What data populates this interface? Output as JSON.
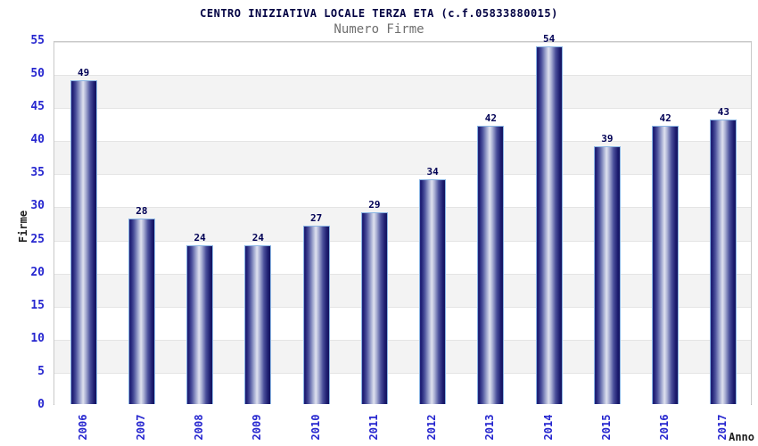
{
  "chart_data": {
    "type": "bar",
    "title": "CENTRO INIZIATIVA LOCALE TERZA ETA (c.f.05833880015)",
    "subtitle": "Numero Firme",
    "xlabel": "Anno",
    "ylabel": "Firme",
    "categories": [
      "2006",
      "2007",
      "2008",
      "2009",
      "2010",
      "2011",
      "2012",
      "2013",
      "2014",
      "2015",
      "2016",
      "2017"
    ],
    "values": [
      49,
      28,
      24,
      24,
      27,
      29,
      34,
      42,
      54,
      39,
      42,
      43
    ],
    "ylim": [
      0,
      55
    ],
    "ytick_step": 5,
    "grid": "horizontal-bands-alternating",
    "legend_position": "none",
    "colors": {
      "bar_edge_dark": "#1b1b6e",
      "bar_mid_light": "#dfe2ef",
      "bar_border": "#8ab5e4",
      "tick_label": "#2626cf",
      "value_label": "#000055",
      "band_alt": "#f3f3f3",
      "gridline": "#e4e4e4",
      "title": "#000042",
      "subtitle": "#6f6f6f",
      "axis_title": "#1d1d1d"
    }
  }
}
